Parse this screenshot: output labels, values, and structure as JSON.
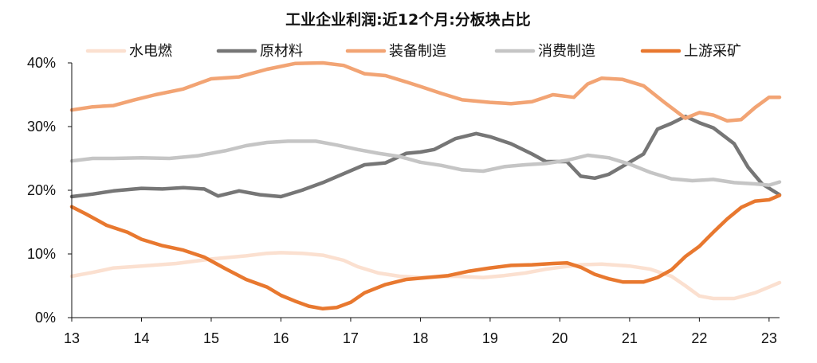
{
  "chart_data": {
    "type": "line",
    "title": "工业企业利润:近12个月:分板块占比",
    "xlabel": "",
    "ylabel": "",
    "x_tick_labels": [
      "13",
      "14",
      "15",
      "16",
      "17",
      "18",
      "19",
      "20",
      "21",
      "22",
      "23"
    ],
    "y_tick_labels": [
      "0%",
      "10%",
      "20%",
      "30%",
      "40%"
    ],
    "x_range": [
      13,
      23.15
    ],
    "ylim": [
      0,
      40
    ],
    "grid": false,
    "legend_position": "top",
    "series": [
      {
        "name": "水电燃",
        "color": "#fbe0d0",
        "points": [
          [
            13.0,
            6.5
          ],
          [
            13.3,
            7.1
          ],
          [
            13.6,
            7.8
          ],
          [
            14.0,
            8.1
          ],
          [
            14.5,
            8.5
          ],
          [
            15.0,
            9.2
          ],
          [
            15.5,
            9.7
          ],
          [
            15.8,
            10.1
          ],
          [
            16.0,
            10.2
          ],
          [
            16.3,
            10.1
          ],
          [
            16.6,
            9.8
          ],
          [
            16.9,
            9.0
          ],
          [
            17.1,
            8.0
          ],
          [
            17.4,
            7.0
          ],
          [
            17.7,
            6.5
          ],
          [
            18.0,
            6.3
          ],
          [
            18.5,
            6.5
          ],
          [
            18.9,
            6.3
          ],
          [
            19.2,
            6.6
          ],
          [
            19.5,
            7.0
          ],
          [
            19.8,
            7.6
          ],
          [
            20.0,
            7.9
          ],
          [
            20.3,
            8.3
          ],
          [
            20.6,
            8.4
          ],
          [
            21.0,
            8.1
          ],
          [
            21.3,
            7.6
          ],
          [
            21.6,
            6.5
          ],
          [
            21.8,
            5.0
          ],
          [
            22.0,
            3.4
          ],
          [
            22.2,
            3.0
          ],
          [
            22.5,
            3.0
          ],
          [
            22.8,
            3.9
          ],
          [
            23.0,
            4.8
          ],
          [
            23.15,
            5.5
          ]
        ]
      },
      {
        "name": "原材料",
        "color": "#767676",
        "points": [
          [
            13.0,
            19.0
          ],
          [
            13.3,
            19.4
          ],
          [
            13.6,
            19.9
          ],
          [
            14.0,
            20.3
          ],
          [
            14.3,
            20.2
          ],
          [
            14.6,
            20.4
          ],
          [
            14.9,
            20.2
          ],
          [
            15.1,
            19.1
          ],
          [
            15.4,
            19.9
          ],
          [
            15.7,
            19.3
          ],
          [
            16.0,
            19.0
          ],
          [
            16.3,
            20.0
          ],
          [
            16.6,
            21.2
          ],
          [
            16.9,
            22.6
          ],
          [
            17.2,
            24.0
          ],
          [
            17.5,
            24.3
          ],
          [
            17.8,
            25.8
          ],
          [
            18.0,
            26.0
          ],
          [
            18.2,
            26.4
          ],
          [
            18.5,
            28.1
          ],
          [
            18.8,
            28.9
          ],
          [
            19.0,
            28.4
          ],
          [
            19.3,
            27.3
          ],
          [
            19.6,
            25.7
          ],
          [
            19.8,
            24.5
          ],
          [
            20.1,
            24.5
          ],
          [
            20.3,
            22.2
          ],
          [
            20.5,
            21.9
          ],
          [
            20.7,
            22.5
          ],
          [
            21.0,
            24.4
          ],
          [
            21.2,
            25.7
          ],
          [
            21.4,
            29.6
          ],
          [
            21.6,
            30.5
          ],
          [
            21.8,
            31.6
          ],
          [
            22.0,
            30.6
          ],
          [
            22.2,
            29.8
          ],
          [
            22.5,
            27.3
          ],
          [
            22.7,
            23.6
          ],
          [
            22.9,
            21.0
          ],
          [
            23.15,
            19.3
          ]
        ]
      },
      {
        "name": "装备制造",
        "color": "#f2a474",
        "points": [
          [
            13.0,
            32.6
          ],
          [
            13.3,
            33.1
          ],
          [
            13.6,
            33.3
          ],
          [
            13.9,
            34.2
          ],
          [
            14.2,
            35.0
          ],
          [
            14.6,
            35.9
          ],
          [
            15.0,
            37.5
          ],
          [
            15.4,
            37.8
          ],
          [
            15.8,
            39.0
          ],
          [
            16.2,
            39.9
          ],
          [
            16.6,
            40.0
          ],
          [
            16.9,
            39.6
          ],
          [
            17.2,
            38.3
          ],
          [
            17.5,
            38.0
          ],
          [
            17.8,
            37.0
          ],
          [
            18.0,
            36.3
          ],
          [
            18.3,
            35.2
          ],
          [
            18.6,
            34.2
          ],
          [
            19.0,
            33.8
          ],
          [
            19.3,
            33.6
          ],
          [
            19.6,
            33.9
          ],
          [
            19.9,
            35.0
          ],
          [
            20.2,
            34.6
          ],
          [
            20.4,
            36.7
          ],
          [
            20.6,
            37.6
          ],
          [
            20.9,
            37.4
          ],
          [
            21.2,
            36.4
          ],
          [
            21.5,
            33.8
          ],
          [
            21.8,
            31.3
          ],
          [
            22.0,
            32.2
          ],
          [
            22.2,
            31.8
          ],
          [
            22.4,
            30.9
          ],
          [
            22.6,
            31.1
          ],
          [
            22.8,
            33.0
          ],
          [
            23.0,
            34.6
          ],
          [
            23.15,
            34.6
          ]
        ]
      },
      {
        "name": "消费制造",
        "color": "#c5c5c5",
        "points": [
          [
            13.0,
            24.6
          ],
          [
            13.3,
            25.0
          ],
          [
            13.6,
            25.0
          ],
          [
            14.0,
            25.1
          ],
          [
            14.4,
            25.0
          ],
          [
            14.8,
            25.4
          ],
          [
            15.2,
            26.2
          ],
          [
            15.5,
            27.0
          ],
          [
            15.8,
            27.5
          ],
          [
            16.1,
            27.7
          ],
          [
            16.5,
            27.7
          ],
          [
            16.8,
            27.1
          ],
          [
            17.1,
            26.4
          ],
          [
            17.4,
            25.8
          ],
          [
            17.7,
            25.3
          ],
          [
            18.0,
            24.4
          ],
          [
            18.3,
            23.9
          ],
          [
            18.6,
            23.2
          ],
          [
            18.9,
            23.0
          ],
          [
            19.2,
            23.7
          ],
          [
            19.5,
            24.0
          ],
          [
            19.8,
            24.2
          ],
          [
            20.1,
            24.7
          ],
          [
            20.4,
            25.5
          ],
          [
            20.7,
            25.1
          ],
          [
            21.0,
            24.1
          ],
          [
            21.3,
            22.8
          ],
          [
            21.6,
            21.8
          ],
          [
            21.9,
            21.5
          ],
          [
            22.2,
            21.7
          ],
          [
            22.5,
            21.2
          ],
          [
            22.8,
            21.0
          ],
          [
            23.0,
            20.8
          ],
          [
            23.15,
            21.3
          ]
        ]
      },
      {
        "name": "上游采矿",
        "color": "#e8782f",
        "points": [
          [
            13.0,
            17.4
          ],
          [
            13.2,
            16.3
          ],
          [
            13.5,
            14.5
          ],
          [
            13.8,
            13.4
          ],
          [
            14.0,
            12.3
          ],
          [
            14.3,
            11.3
          ],
          [
            14.6,
            10.6
          ],
          [
            14.9,
            9.5
          ],
          [
            15.2,
            7.7
          ],
          [
            15.5,
            6.0
          ],
          [
            15.8,
            4.8
          ],
          [
            16.0,
            3.5
          ],
          [
            16.2,
            2.6
          ],
          [
            16.4,
            1.8
          ],
          [
            16.6,
            1.4
          ],
          [
            16.8,
            1.6
          ],
          [
            17.0,
            2.4
          ],
          [
            17.2,
            3.9
          ],
          [
            17.5,
            5.2
          ],
          [
            17.8,
            6.0
          ],
          [
            18.1,
            6.3
          ],
          [
            18.4,
            6.6
          ],
          [
            18.7,
            7.3
          ],
          [
            19.0,
            7.8
          ],
          [
            19.3,
            8.2
          ],
          [
            19.6,
            8.3
          ],
          [
            19.9,
            8.5
          ],
          [
            20.1,
            8.6
          ],
          [
            20.3,
            7.9
          ],
          [
            20.5,
            6.8
          ],
          [
            20.7,
            6.1
          ],
          [
            20.9,
            5.6
          ],
          [
            21.2,
            5.6
          ],
          [
            21.4,
            6.3
          ],
          [
            21.6,
            7.5
          ],
          [
            21.8,
            9.6
          ],
          [
            22.0,
            11.2
          ],
          [
            22.2,
            13.4
          ],
          [
            22.4,
            15.5
          ],
          [
            22.6,
            17.3
          ],
          [
            22.8,
            18.3
          ],
          [
            23.0,
            18.5
          ],
          [
            23.15,
            19.2
          ]
        ]
      }
    ]
  }
}
